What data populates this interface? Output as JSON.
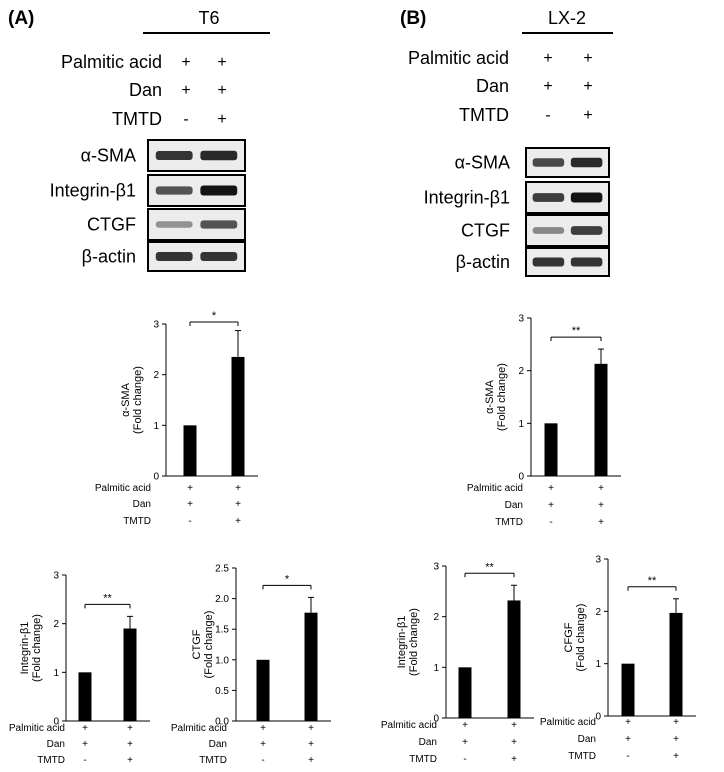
{
  "panels": [
    {
      "letter": "(A)",
      "cell_line": "T6",
      "treatments": [
        {
          "name": "Palmitic acid",
          "signs": [
            "+",
            "+"
          ]
        },
        {
          "name": "Dan",
          "signs": [
            "+",
            "+"
          ]
        },
        {
          "name": "TMTD",
          "signs": [
            "-",
            "+"
          ]
        }
      ],
      "blots": [
        {
          "name": "α-SMA",
          "intensity": [
            0.85,
            0.9
          ]
        },
        {
          "name": "Integrin-β1",
          "intensity": [
            0.7,
            1.0
          ]
        },
        {
          "name": "CTGF",
          "intensity": [
            0.4,
            0.7
          ]
        },
        {
          "name": "β-actin",
          "intensity": [
            0.85,
            0.85
          ]
        }
      ]
    },
    {
      "letter": "(B)",
      "cell_line": "LX-2",
      "treatments": [
        {
          "name": "Palmitic acid",
          "signs": [
            "+",
            "+"
          ]
        },
        {
          "name": "Dan",
          "signs": [
            "+",
            "+"
          ]
        },
        {
          "name": "TMTD",
          "signs": [
            "-",
            "+"
          ]
        }
      ],
      "blots": [
        {
          "name": "α-SMA",
          "intensity": [
            0.75,
            0.9
          ]
        },
        {
          "name": "Integrin-β1",
          "intensity": [
            0.8,
            1.0
          ]
        },
        {
          "name": "CTGF",
          "intensity": [
            0.45,
            0.8
          ]
        },
        {
          "name": "β-actin",
          "intensity": [
            0.85,
            0.85
          ]
        }
      ]
    }
  ],
  "chart_data": [
    {
      "type": "bar",
      "panel": "A",
      "ylabel_line1": "α-SMA",
      "ylabel_line2": "(Fold change)",
      "categories": [
        "",
        ""
      ],
      "values": [
        1.0,
        2.35
      ],
      "errors": [
        0,
        0.52
      ],
      "ylim": [
        0,
        3
      ],
      "yticks": [
        "0",
        "1",
        "2",
        "3"
      ],
      "significance": "*",
      "treatments": [
        {
          "name": "Palmitic acid",
          "signs": [
            "+",
            "+"
          ]
        },
        {
          "name": "Dan",
          "signs": [
            "+",
            "+"
          ]
        },
        {
          "name": "TMTD",
          "signs": [
            "-",
            "+"
          ]
        }
      ]
    },
    {
      "type": "bar",
      "panel": "A",
      "ylabel_line1": "Integrin-β1",
      "ylabel_line2": "(Fold change)",
      "categories": [
        "",
        ""
      ],
      "values": [
        1.0,
        1.9
      ],
      "errors": [
        0,
        0.25
      ],
      "ylim": [
        0,
        3
      ],
      "yticks": [
        "0",
        "1",
        "2",
        "3"
      ],
      "significance": "**",
      "treatments": [
        {
          "name": "Palmitic acid",
          "signs": [
            "+",
            "+"
          ]
        },
        {
          "name": "Dan",
          "signs": [
            "+",
            "+"
          ]
        },
        {
          "name": "TMTD",
          "signs": [
            "-",
            "+"
          ]
        }
      ]
    },
    {
      "type": "bar",
      "panel": "A",
      "ylabel_line1": "CTGF",
      "ylabel_line2": "(Fold change)",
      "categories": [
        "",
        ""
      ],
      "values": [
        1.0,
        1.77
      ],
      "errors": [
        0,
        0.25
      ],
      "ylim": [
        0,
        2.5
      ],
      "yticks": [
        "0.0",
        "0.5",
        "1.0",
        "1.5",
        "2.0",
        "2.5"
      ],
      "significance": "*",
      "treatments": [
        {
          "name": "Palmitic acid",
          "signs": [
            "+",
            "+"
          ]
        },
        {
          "name": "Dan",
          "signs": [
            "+",
            "+"
          ]
        },
        {
          "name": "TMTD",
          "signs": [
            "-",
            "+"
          ]
        }
      ]
    },
    {
      "type": "bar",
      "panel": "B",
      "ylabel_line1": "α-SMA",
      "ylabel_line2": "(Fold change)",
      "categories": [
        "",
        ""
      ],
      "values": [
        1.0,
        2.13
      ],
      "errors": [
        0,
        0.28
      ],
      "ylim": [
        0,
        3
      ],
      "yticks": [
        "0",
        "1",
        "2",
        "3"
      ],
      "significance": "**",
      "treatments": [
        {
          "name": "Palmitic acid",
          "signs": [
            "+",
            "+"
          ]
        },
        {
          "name": "Dan",
          "signs": [
            "+",
            "+"
          ]
        },
        {
          "name": "TMTD",
          "signs": [
            "-",
            "+"
          ]
        }
      ]
    },
    {
      "type": "bar",
      "panel": "B",
      "ylabel_line1": "Integrin-β1",
      "ylabel_line2": "(Fold change)",
      "categories": [
        "",
        ""
      ],
      "values": [
        1.0,
        2.32
      ],
      "errors": [
        0,
        0.3
      ],
      "ylim": [
        0,
        3
      ],
      "yticks": [
        "0",
        "1",
        "2",
        "3"
      ],
      "significance": "**",
      "treatments": [
        {
          "name": "Palmitic acid",
          "signs": [
            "+",
            "+"
          ]
        },
        {
          "name": "Dan",
          "signs": [
            "+",
            "+"
          ]
        },
        {
          "name": "TMTD",
          "signs": [
            "-",
            "+"
          ]
        }
      ]
    },
    {
      "type": "bar",
      "panel": "B",
      "ylabel_line1": "CFGF",
      "ylabel_line2": "(Fold change)",
      "categories": [
        "",
        ""
      ],
      "values": [
        1.0,
        1.97
      ],
      "errors": [
        0,
        0.27
      ],
      "ylim": [
        0,
        3
      ],
      "yticks": [
        "0",
        "1",
        "2",
        "3"
      ],
      "significance": "**",
      "treatments": [
        {
          "name": "Palmitic acid",
          "signs": [
            "+",
            "+"
          ]
        },
        {
          "name": "Dan",
          "signs": [
            "+",
            "+"
          ]
        },
        {
          "name": "TMTD",
          "signs": [
            "-",
            "+"
          ]
        }
      ]
    }
  ]
}
